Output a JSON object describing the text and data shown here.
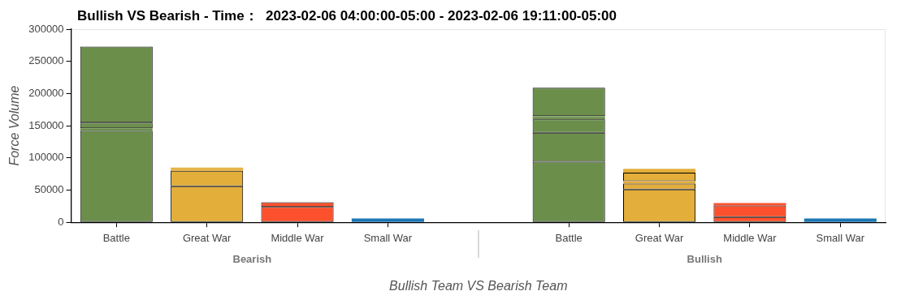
{
  "chart_data": {
    "type": "bar",
    "title": "Bullish VS Bearish - Time：  2023-02-06 04:00:00-05:00 - 2023-02-06 19:11:00-05:00",
    "xlabel": "Bullish Team VS Bearish Team",
    "ylabel": "Force Volume",
    "categories": [
      "Battle",
      "Great War",
      "Middle War",
      "Small War",
      null,
      "Battle",
      "Great War",
      "Middle War",
      "Small War"
    ],
    "annotations": [
      "Bearish",
      "Bullish"
    ],
    "stacked": true,
    "series": [
      {
        "colors": [
          "#6b8f4b",
          "#e3ae3a",
          "#fd512e",
          "#1f77b4",
          null,
          "#6b8f4b",
          "#e3ae3a",
          "#fd512e",
          "#1f77b4"
        ],
        "values": [
          142000,
          56000,
          24000,
          4000,
          null,
          94000,
          51000,
          8000,
          4000
        ]
      },
      {
        "colors": [
          "#6b8f4b",
          "#e3ae3a",
          "#fd512e",
          "#1f77b4",
          null,
          "#6b8f4b",
          "#e3ae3a",
          "#fd512e",
          "#1f77b4"
        ],
        "values": [
          4000,
          24000,
          7000,
          2000,
          null,
          45000,
          9000,
          18000,
          2000
        ]
      },
      {
        "colors": [
          "#6b8f4b",
          "#e3ae3a",
          "#fd512e",
          "#1f77b4",
          null,
          "#6b8f4b",
          "#e3ae3a",
          "#fd512e",
          "#1f77b4"
        ],
        "values": [
          9000,
          3000,
          null,
          null,
          null,
          21000,
          4000,
          4000,
          null
        ]
      },
      {
        "colors": [
          "#6b8f4b",
          "#e3ae3a",
          "#fd512e",
          "#1f77b4",
          null,
          "#6b8f4b",
          "#e3ae3a",
          "#fd512e",
          "#1f77b4"
        ],
        "values": [
          118000,
          2000,
          null,
          null,
          null,
          3000,
          13000,
          null,
          null
        ]
      },
      {
        "colors": [
          "#6b8f4b",
          "#e3ae3a",
          "#fd512e",
          "#1f77b4",
          null,
          "#6b8f4b",
          "#e3ae3a",
          "#fd512e",
          "#1f77b4"
        ],
        "values": [
          null,
          null,
          null,
          null,
          null,
          2000,
          5000,
          null,
          null
        ]
      },
      {
        "colors": [
          "#6b8f4b",
          "#e3ae3a",
          "#fd512e",
          "#1f77b4",
          null,
          "#6b8f4b",
          "#e3ae3a",
          "#fd512e",
          "#1f77b4"
        ],
        "values": [
          null,
          null,
          null,
          null,
          null,
          44000,
          1000,
          null,
          null
        ]
      }
    ],
    "ylim": [
      0,
      300000
    ],
    "yticks": [
      0,
      50000,
      100000,
      150000,
      200000,
      250000,
      300000
    ],
    "grid": false,
    "legend": false
  }
}
